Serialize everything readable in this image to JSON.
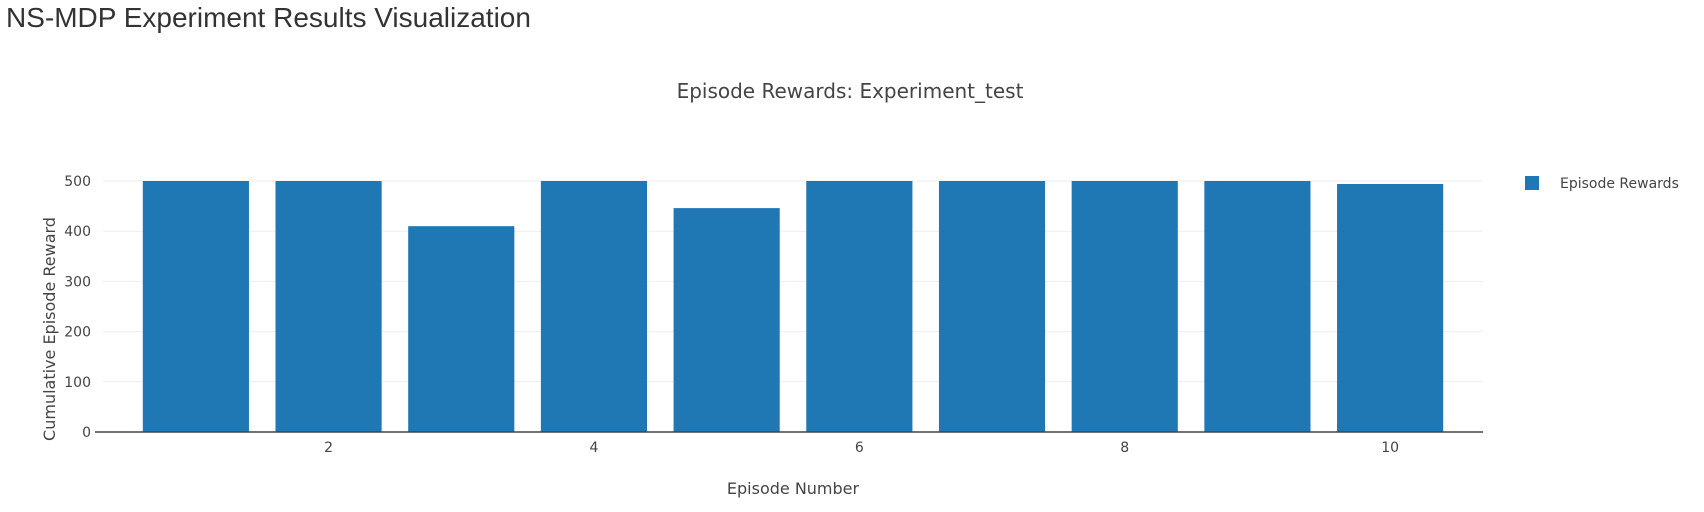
{
  "page": {
    "title": "NS-MDP Experiment Results Visualization"
  },
  "chart_data": {
    "type": "bar",
    "title": "Episode Rewards: Experiment_test",
    "xlabel": "Episode Number",
    "ylabel": "Cumulative Episode Reward",
    "x": [
      1,
      2,
      3,
      4,
      5,
      6,
      7,
      8,
      9,
      10
    ],
    "series": [
      {
        "name": "Episode Rewards",
        "values": [
          500,
          500,
          410,
          500,
          446,
          500,
          500,
          500,
          500,
          494
        ]
      }
    ],
    "xlim": [
      0.3,
      10.7
    ],
    "ylim": [
      0,
      500
    ],
    "x_ticks": [
      2,
      4,
      6,
      8,
      10
    ],
    "y_ticks": [
      0,
      100,
      200,
      300,
      400,
      500
    ],
    "grid": "horizontal",
    "legend_position": "top-right",
    "colors": {
      "bar": "#1f77b4",
      "grid": "#eeeeee",
      "axis": "#444444",
      "text": "#444444",
      "title": "#444444"
    }
  }
}
